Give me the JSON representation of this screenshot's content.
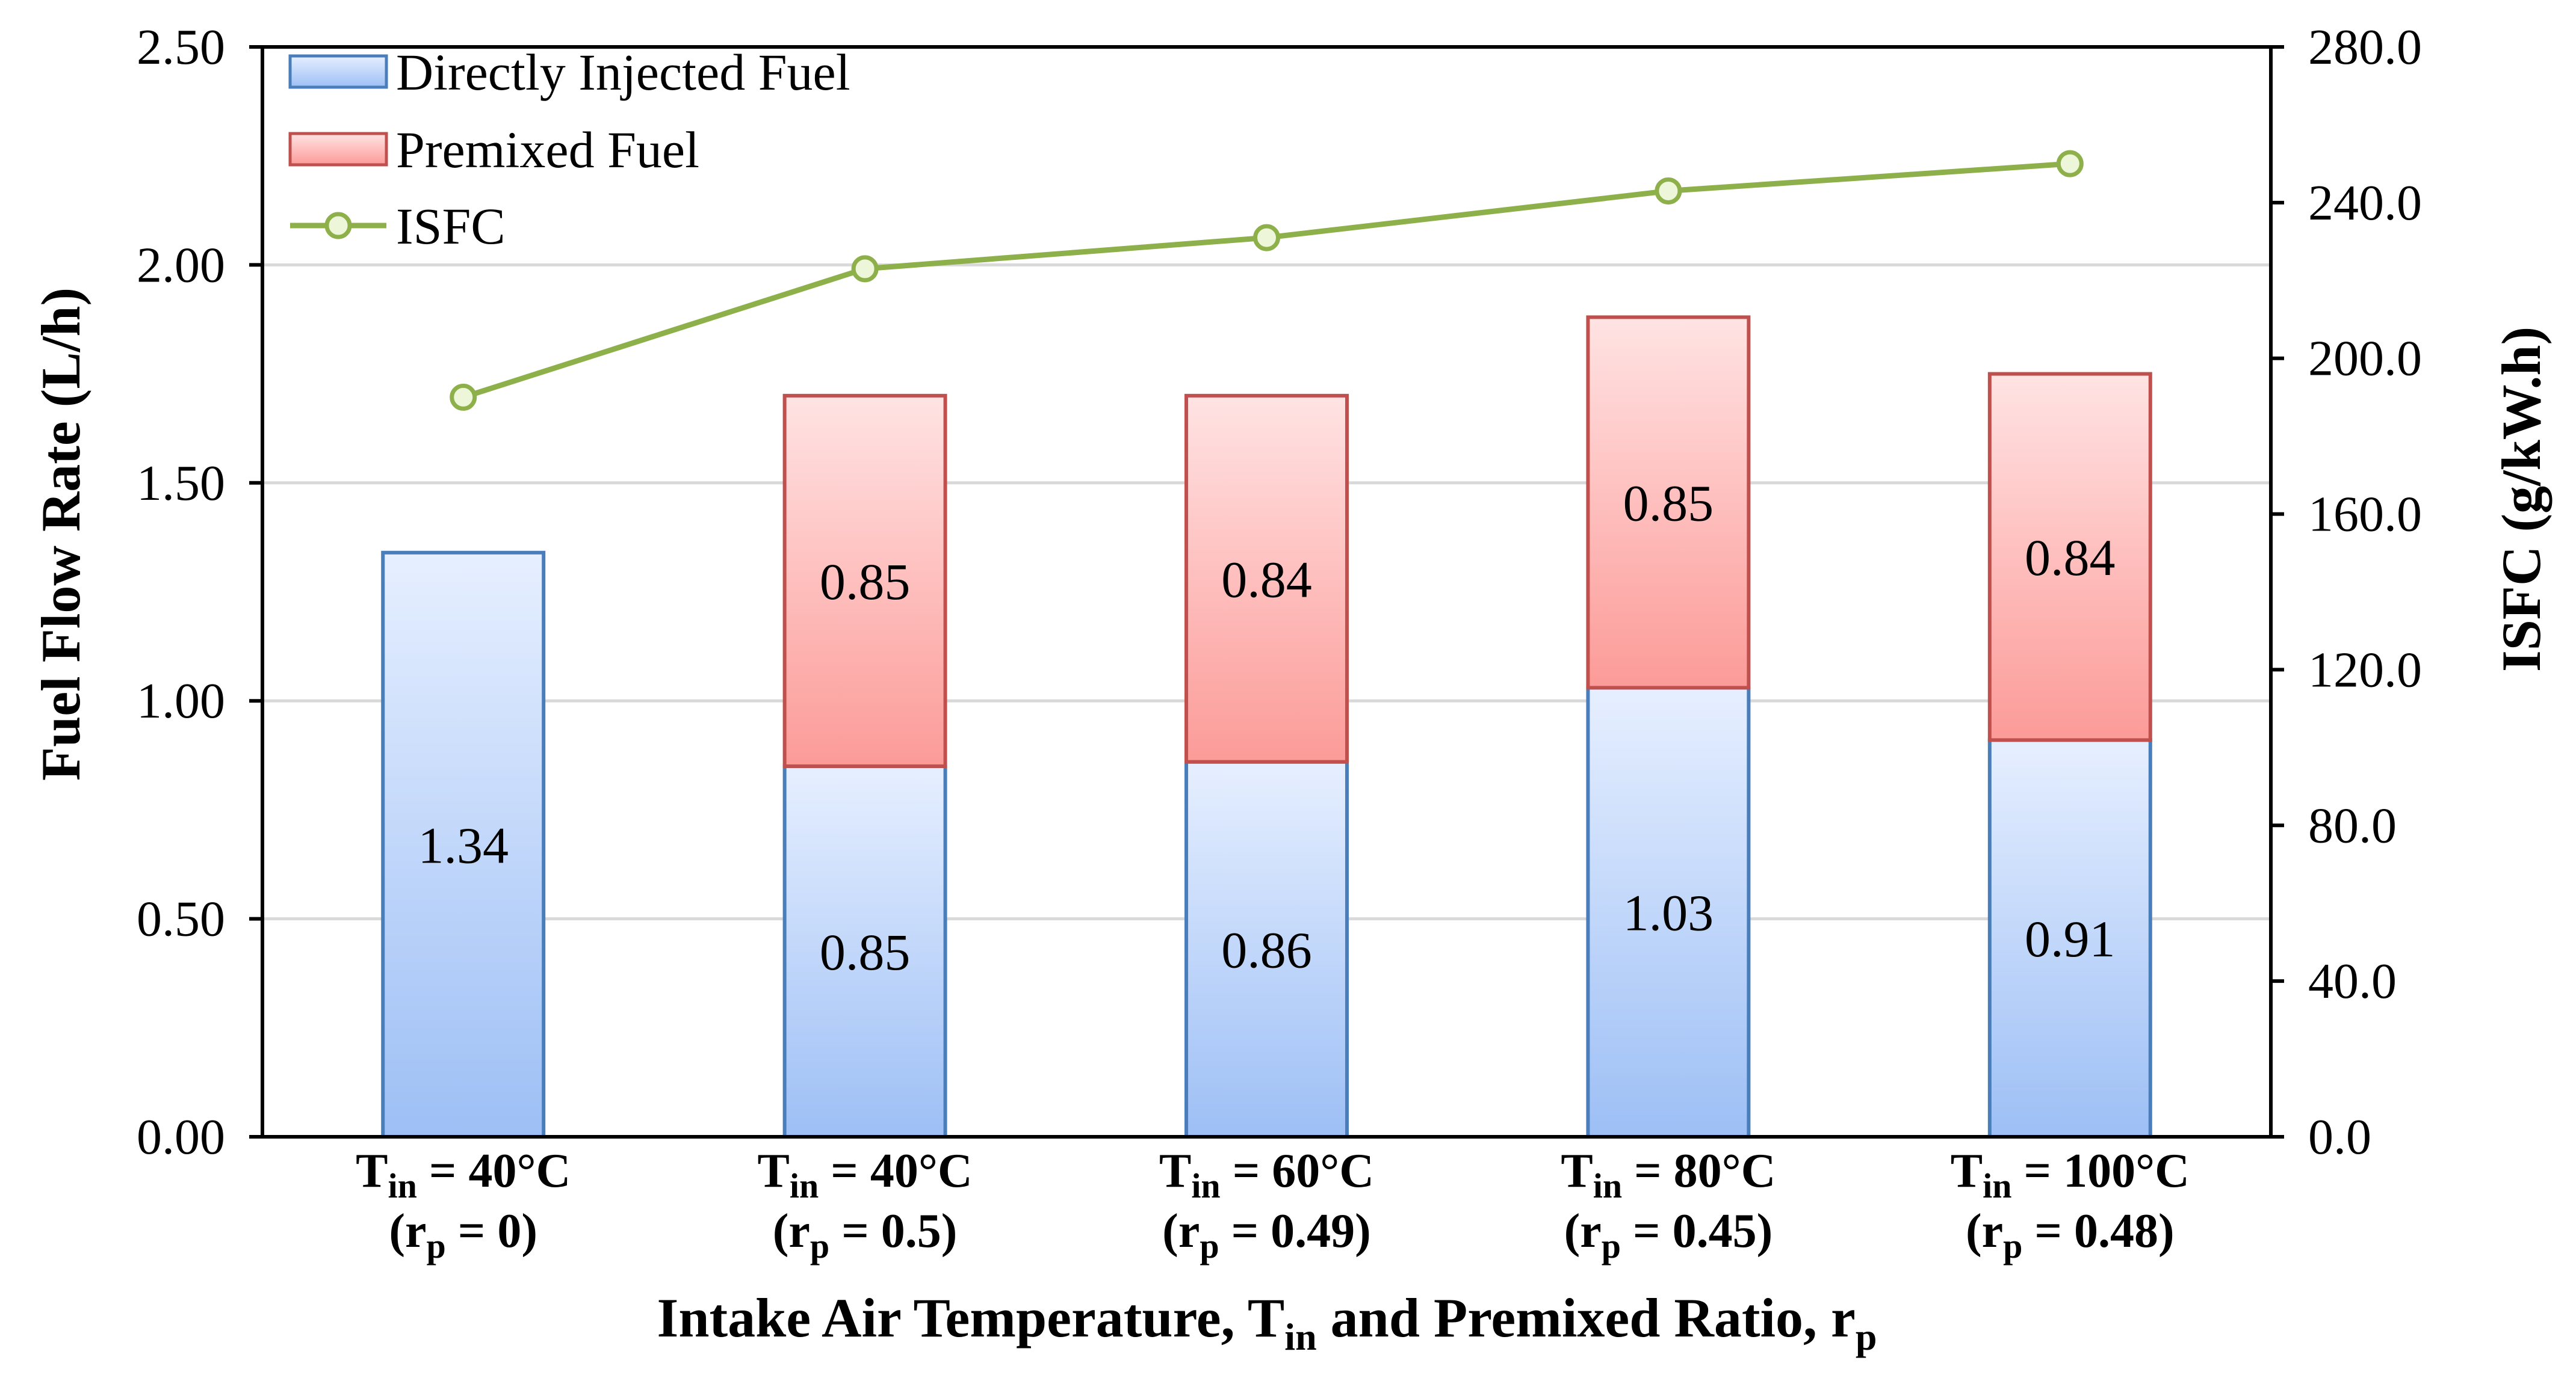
{
  "chart_data": {
    "type": "bar",
    "stacked": true,
    "categories": [
      {
        "temp": "T_in = 40°C",
        "ratio": "r_p = 0"
      },
      {
        "temp": "T_in = 40°C",
        "ratio": "r_p = 0.5"
      },
      {
        "temp": "T_in = 60°C",
        "ratio": "r_p = 0.49"
      },
      {
        "temp": "T_in = 80°C",
        "ratio": "r_p = 0.45"
      },
      {
        "temp": "T_in = 100°C",
        "ratio": "r_p = 0.48"
      }
    ],
    "category_parts": [
      {
        "t_value": " = 40°C",
        "r_value": " = 0)"
      },
      {
        "t_value": " = 40°C",
        "r_value": " = 0.5)"
      },
      {
        "t_value": " = 60°C",
        "r_value": " = 0.49)"
      },
      {
        "t_value": " = 80°C",
        "r_value": " = 0.45)"
      },
      {
        "t_value": " = 100°C",
        "r_value": " = 0.48)"
      }
    ],
    "series": [
      {
        "name": "Directly Injected Fuel",
        "axis": "left",
        "values": [
          1.34,
          0.85,
          0.86,
          1.03,
          0.91
        ],
        "labels": [
          "1.34",
          "0.85",
          "0.86",
          "1.03",
          "0.91"
        ],
        "color": "#4a7ebb"
      },
      {
        "name": "Premixed Fuel",
        "axis": "left",
        "values": [
          0,
          0.85,
          0.84,
          0.85,
          0.84
        ],
        "labels": [
          "",
          "0.85",
          "0.84",
          "0.85",
          "0.84"
        ],
        "color": "#c0504d"
      },
      {
        "name": "ISFC",
        "type": "line",
        "axis": "right",
        "values": [
          190,
          223,
          231,
          243,
          250
        ],
        "color": "#8db04a"
      }
    ],
    "xlabel": "Intake Air Temperature, T_in and Premixed Ratio, r_p",
    "ylabel": "Fuel Flow Rate (L/h)",
    "y2label": "ISFC (g/kW.h)",
    "ylim": [
      0,
      2.5
    ],
    "y2lim": [
      0,
      280
    ],
    "yticks": [
      "0.00",
      "0.50",
      "1.00",
      "1.50",
      "2.00",
      "2.50"
    ],
    "y2ticks": [
      "0.0",
      "40.0",
      "80.0",
      "120.0",
      "160.0",
      "200.0",
      "240.0",
      "280.0"
    ],
    "grid": true,
    "legend_position": "top-left"
  },
  "text": {
    "xlabel_main": "Intake Air Temperature, T",
    "xlabel_sub1": "in",
    "xlabel_mid": " and Premixed Ratio, r",
    "xlabel_sub2": "p",
    "t_letter": "T",
    "t_sub": "in",
    "r_open": "(r",
    "r_sub": "p"
  }
}
